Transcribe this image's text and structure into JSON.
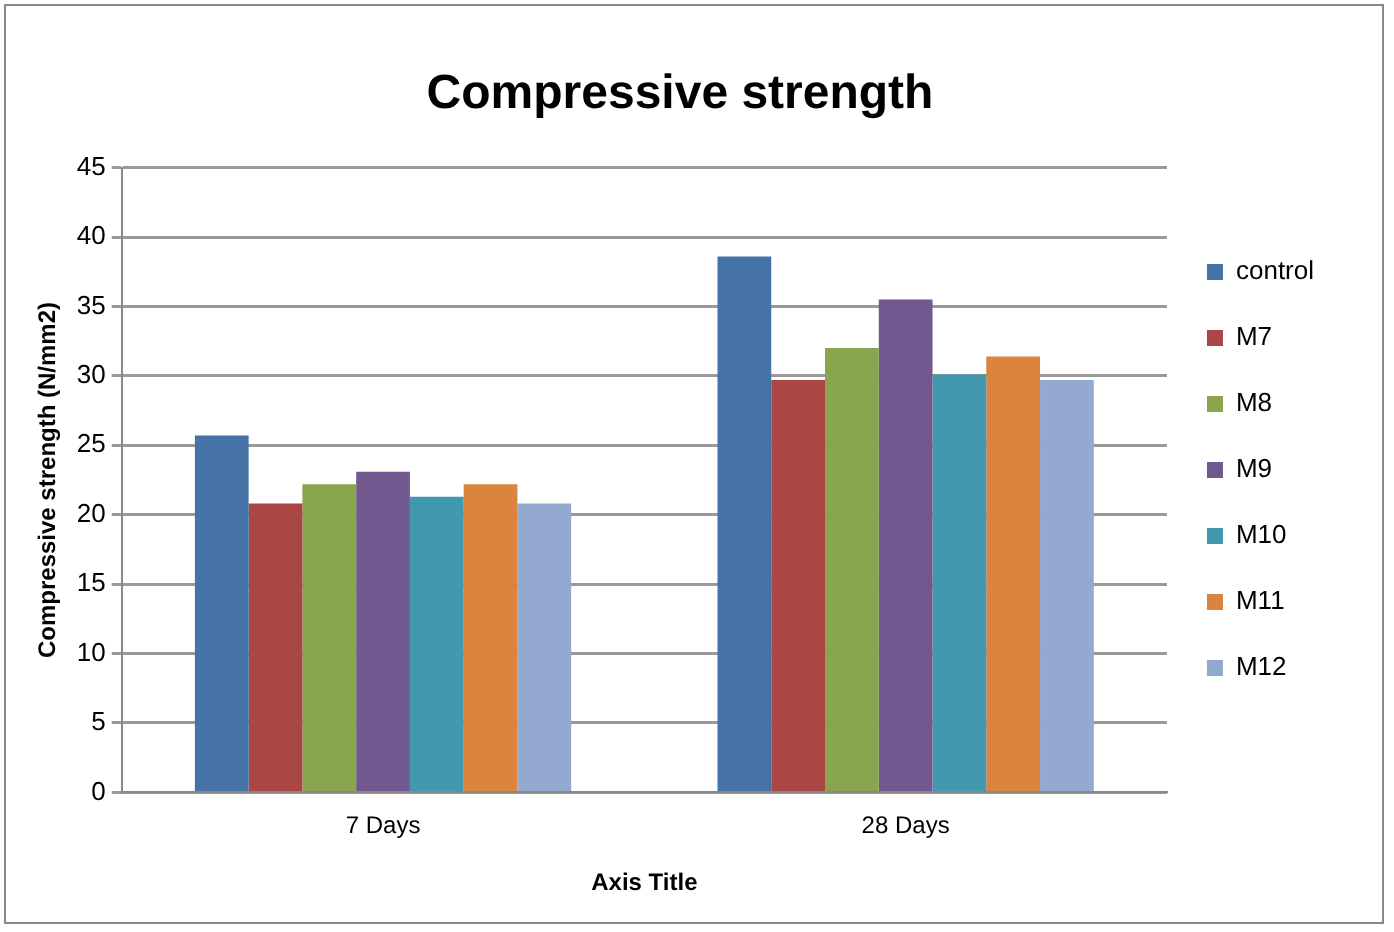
{
  "chart_data": {
    "type": "bar",
    "title": "Compressive strength",
    "xlabel": "Axis Title",
    "ylabel": "Compressive strength (N/mm2)",
    "categories": [
      "7 Days",
      "28 Days"
    ],
    "series": [
      {
        "name": "control",
        "color": "#4572a7",
        "values": [
          25.7,
          38.6
        ]
      },
      {
        "name": "M7",
        "color": "#aa4643",
        "values": [
          20.8,
          29.7
        ]
      },
      {
        "name": "M8",
        "color": "#89a54e",
        "values": [
          22.2,
          32.0
        ]
      },
      {
        "name": "M9",
        "color": "#71588f",
        "values": [
          23.1,
          35.5
        ]
      },
      {
        "name": "M10",
        "color": "#4198af",
        "values": [
          21.3,
          30.1
        ]
      },
      {
        "name": "M11",
        "color": "#db843d",
        "values": [
          22.2,
          31.4
        ]
      },
      {
        "name": "M12",
        "color": "#93a9cf",
        "values": [
          20.8,
          29.7
        ]
      }
    ],
    "ylim": [
      0,
      45
    ],
    "yticks": [
      0,
      5,
      10,
      15,
      20,
      25,
      30,
      35,
      40,
      45
    ],
    "grid": "y",
    "legend": "right"
  }
}
